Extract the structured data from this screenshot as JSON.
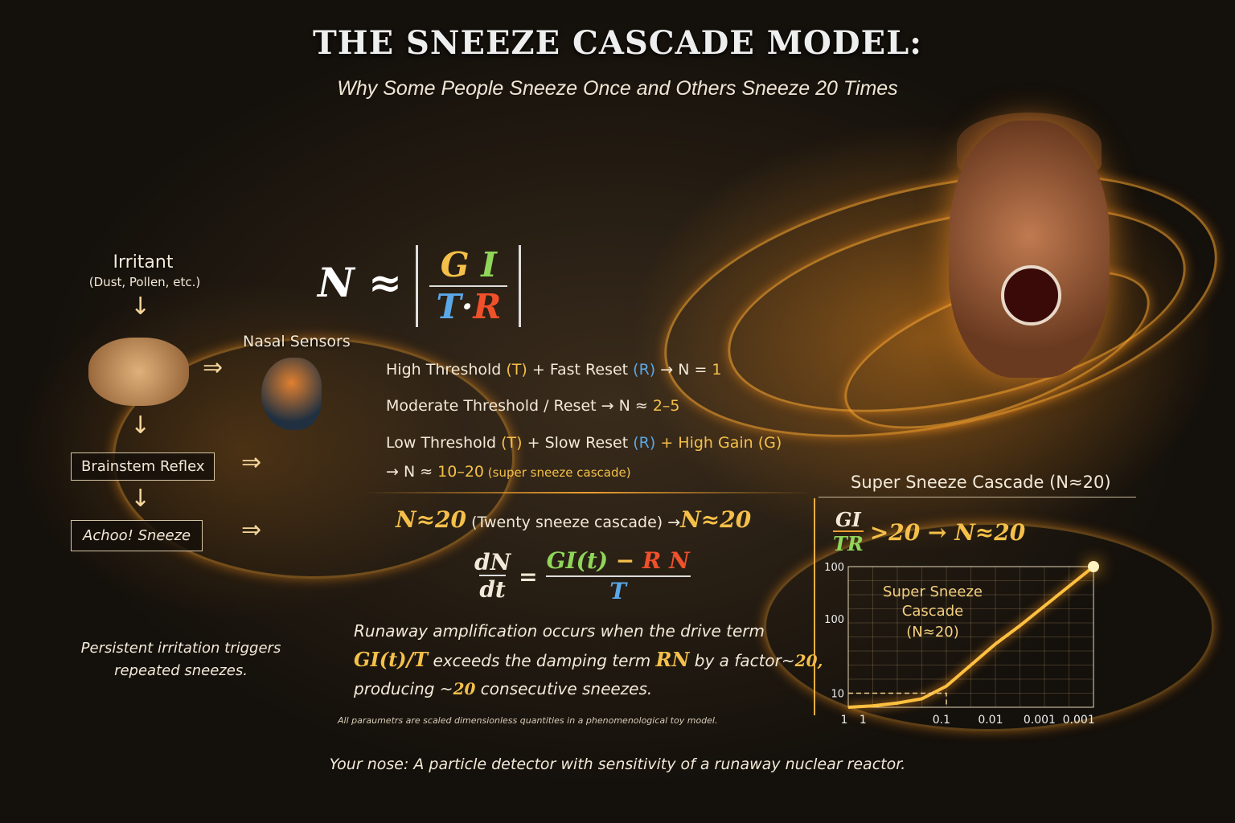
{
  "title": "THE SNEEZE CASCADE MODEL:",
  "subtitle": "Why Some People Sneeze Once and Others Sneeze 20 Times",
  "flow": {
    "irritant": "Irritant",
    "irritant_sub": "(Dust, Pollen, etc.)",
    "nasal": "Nasal Sensors",
    "brainstem": "Brainstem Reflex",
    "achoo": "Achoo! Sneeze",
    "persistent": "Persistent irritation triggers repeated sneezes."
  },
  "formula": {
    "lhs": "N ≈",
    "num_g": "G",
    "num_i": "I",
    "den_t": "T",
    "dot": "·",
    "den_r": "R"
  },
  "conditions": [
    {
      "a": "High Threshold ",
      "t": "(T)",
      "b": " + Fast Reset ",
      "r": "(R)",
      "c": " → N = ",
      "v": "1"
    },
    {
      "a": "Moderate Threshold / Reset → N ≈ ",
      "v": "2–5"
    },
    {
      "a": "Low Threshold ",
      "t": "(T)",
      "b": " + Slow Reset ",
      "r": "(R)",
      "c": " + High Gain (G)"
    },
    {
      "a": "→ N ≈ ",
      "v": "10–20",
      "note": " (super sneeze cascade)"
    }
  ],
  "twenty": {
    "a": "N≈20",
    "b": " (Twenty sneeze cascade) →",
    "c": "N≈20"
  },
  "ode": {
    "lhs_num": "dN",
    "lhs_den": "dt",
    "eq": "=",
    "gi": "GI(t)",
    "minus": " − ",
    "r": "R",
    "n": "N",
    "den": "T"
  },
  "explain": {
    "l1": "Runaway amplification occurs when the drive term",
    "gi": "GI(t)/T",
    "l2a": " exceeds the damping term ",
    "rn": "RN",
    "l2b": " by a factor~",
    "f": "20,",
    "l3a": "producing ~",
    "l3n": "20",
    "l3b": " consecutive sneezes."
  },
  "footnote": "All paraumetrs are scaled dimensionless quantities in a phenomenological toy model.",
  "tagline": "Your nose: A particle detector with sensitivity of a runaway nuclear reactor.",
  "chart_data": {
    "type": "line",
    "title": "Super Sneeze Cascade (N≈20)",
    "condition": {
      "num": "GI",
      "den": "TR",
      "rest": ">20 → N≈20"
    },
    "annotation": "Super Sneeze Cascade (N≈20)",
    "annotation_lines": [
      "Super Sneeze",
      "Cascade",
      "(N≈20)"
    ],
    "x_ticks": [
      "1",
      "1",
      "0.1",
      "0.01",
      "0.001",
      "0.001"
    ],
    "y_ticks": [
      "100",
      "100",
      "10"
    ],
    "x": [
      0,
      0.5,
      1,
      1.5,
      2,
      2.5,
      3,
      3.5,
      4,
      4.5,
      5
    ],
    "values": [
      0,
      1,
      3,
      6,
      15,
      30,
      45,
      58,
      72,
      86,
      100
    ],
    "reference": {
      "x": 2,
      "y": 10
    },
    "color": "#ffb020",
    "grid": true
  }
}
